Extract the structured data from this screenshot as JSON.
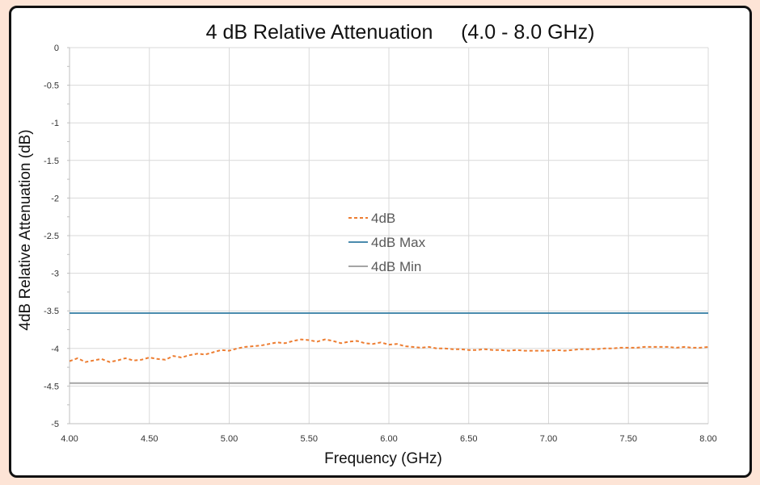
{
  "chart_data": {
    "type": "line",
    "title": "4 dB Relative Attenuation     (4.0 - 8.0 GHz)",
    "xlabel": "Frequency (GHz)",
    "ylabel": "4dB Relative Attenuation (dB)",
    "xlim": [
      4.0,
      8.0
    ],
    "ylim": [
      -5,
      0
    ],
    "x_ticks": [
      "4.00",
      "4.50",
      "5.00",
      "5.50",
      "6.00",
      "6.50",
      "7.00",
      "7.50",
      "8.00"
    ],
    "y_ticks": [
      "0",
      "-0.5",
      "-1",
      "-1.5",
      "-2",
      "-2.5",
      "-3",
      "-3.5",
      "-4",
      "-4.5",
      "-5"
    ],
    "grid": true,
    "legend_position": "center",
    "series": [
      {
        "name": "4dB",
        "color": "#ed7d31",
        "style": "dashed",
        "x": [
          4.0,
          4.05,
          4.1,
          4.15,
          4.2,
          4.25,
          4.3,
          4.35,
          4.4,
          4.45,
          4.5,
          4.55,
          4.6,
          4.65,
          4.7,
          4.75,
          4.8,
          4.85,
          4.9,
          4.95,
          5.0,
          5.05,
          5.1,
          5.15,
          5.2,
          5.25,
          5.3,
          5.35,
          5.4,
          5.45,
          5.5,
          5.55,
          5.6,
          5.65,
          5.7,
          5.75,
          5.8,
          5.85,
          5.9,
          5.95,
          6.0,
          6.05,
          6.1,
          6.15,
          6.2,
          6.25,
          6.3,
          6.35,
          6.4,
          6.45,
          6.5,
          6.55,
          6.6,
          6.65,
          6.7,
          6.75,
          6.8,
          6.85,
          6.9,
          6.95,
          7.0,
          7.05,
          7.1,
          7.15,
          7.2,
          7.25,
          7.3,
          7.35,
          7.4,
          7.45,
          7.5,
          7.55,
          7.6,
          7.65,
          7.7,
          7.75,
          7.8,
          7.85,
          7.9,
          7.95,
          8.0
        ],
        "values": [
          -4.17,
          -4.13,
          -4.18,
          -4.16,
          -4.14,
          -4.18,
          -4.16,
          -4.13,
          -4.16,
          -4.15,
          -4.12,
          -4.14,
          -4.15,
          -4.1,
          -4.12,
          -4.09,
          -4.07,
          -4.08,
          -4.05,
          -4.02,
          -4.03,
          -4.0,
          -3.98,
          -3.97,
          -3.96,
          -3.94,
          -3.92,
          -3.93,
          -3.9,
          -3.88,
          -3.89,
          -3.91,
          -3.88,
          -3.9,
          -3.93,
          -3.91,
          -3.9,
          -3.93,
          -3.94,
          -3.92,
          -3.95,
          -3.94,
          -3.97,
          -3.98,
          -3.99,
          -3.98,
          -4.0,
          -4.0,
          -4.01,
          -4.01,
          -4.02,
          -4.02,
          -4.01,
          -4.02,
          -4.02,
          -4.03,
          -4.02,
          -4.03,
          -4.03,
          -4.03,
          -4.03,
          -4.02,
          -4.03,
          -4.02,
          -4.01,
          -4.01,
          -4.01,
          -4.0,
          -4.0,
          -3.99,
          -3.99,
          -3.99,
          -3.98,
          -3.98,
          -3.98,
          -3.98,
          -3.99,
          -3.98,
          -3.99,
          -3.99,
          -3.98
        ]
      },
      {
        "name": "4dB Max",
        "color": "#4a8bad",
        "style": "solid",
        "x": [
          4.0,
          8.0
        ],
        "values": [
          -3.53,
          -3.53
        ]
      },
      {
        "name": "4dB Min",
        "color": "#a5a5a5",
        "style": "solid",
        "x": [
          4.0,
          8.0
        ],
        "values": [
          -4.46,
          -4.46
        ]
      }
    ]
  }
}
